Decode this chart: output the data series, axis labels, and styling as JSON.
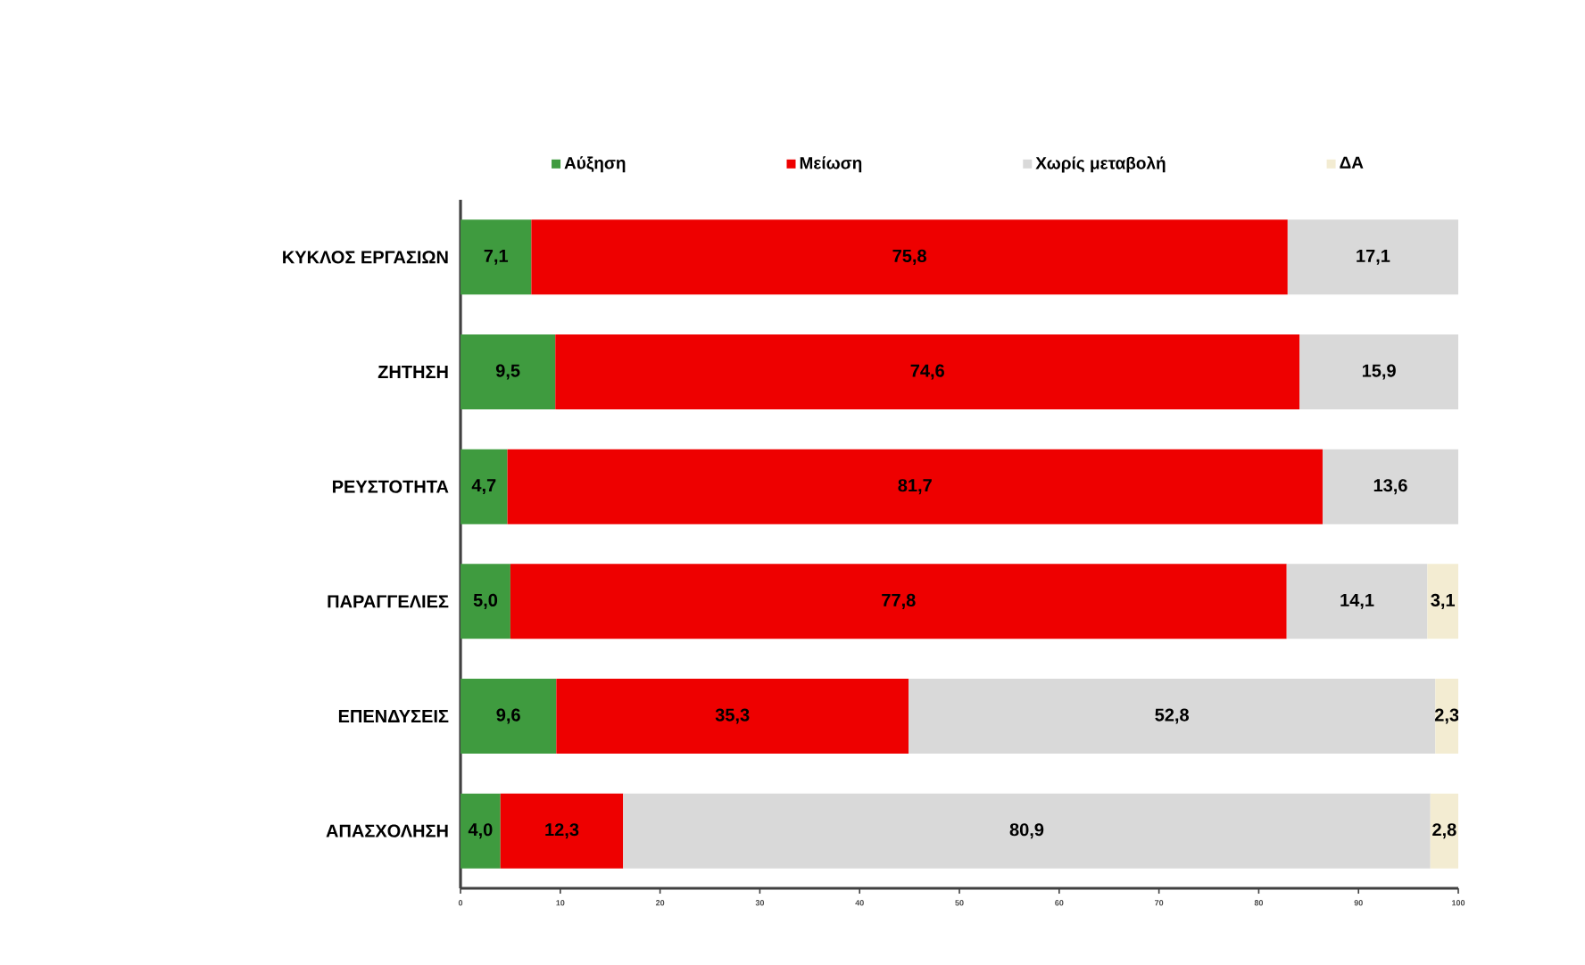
{
  "chart_data": {
    "type": "bar",
    "orientation": "horizontal",
    "stacked": true,
    "categories": [
      "ΚΥΚΛΟΣ ΕΡΓΑΣΙΩΝ",
      "ΖΗΤΗΣΗ",
      "ΡΕΥΣΤΟΤΗΤΑ",
      "ΠΑΡΑΓΓΕΛΙΕΣ",
      "ΕΠΕΝΔΥΣΕΙΣ",
      "ΑΠΑΣΧΟΛΗΣΗ"
    ],
    "series": [
      {
        "name": "Αύξηση",
        "color": "#3f9b3f",
        "values": [
          7.1,
          9.5,
          4.7,
          5.0,
          9.6,
          4.0
        ],
        "value_labels": [
          "7,1",
          "9,5",
          "4,7",
          "5,0",
          "9,6",
          "4,0"
        ]
      },
      {
        "name": "Μείωση",
        "color": "#ee0000",
        "values": [
          75.8,
          74.6,
          81.7,
          77.8,
          35.3,
          12.3
        ],
        "value_labels": [
          "75,8",
          "74,6",
          "81,7",
          "77,8",
          "35,3",
          "12,3"
        ]
      },
      {
        "name": "Χωρίς μεταβολή",
        "color": "#d9d9d9",
        "values": [
          17.1,
          15.9,
          13.6,
          14.1,
          52.8,
          80.9
        ],
        "value_labels": [
          "17,1",
          "15,9",
          "13,6",
          "14,1",
          "52,8",
          "80,9"
        ]
      },
      {
        "name": "ΔΑ",
        "color": "#f3ecd2",
        "values": [
          null,
          null,
          null,
          3.1,
          2.3,
          2.8
        ],
        "value_labels": [
          null,
          null,
          null,
          "3,1",
          "2,3",
          "2,8"
        ]
      }
    ],
    "xlim": [
      0,
      100
    ],
    "xticks": [
      0,
      10,
      20,
      30,
      40,
      50,
      60,
      70,
      80,
      90,
      100
    ],
    "legend": "top",
    "grid": false
  }
}
